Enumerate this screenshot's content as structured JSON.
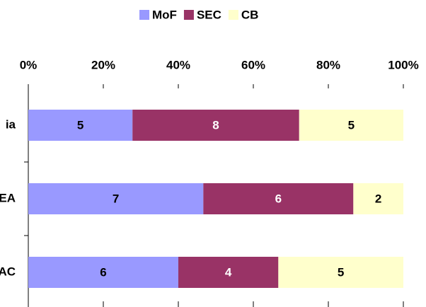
{
  "chart_data": {
    "type": "bar",
    "orientation": "horizontal",
    "stacked": "percent",
    "categories": [
      "ia",
      "EA",
      "AC"
    ],
    "series": [
      {
        "name": "MoF",
        "color": "#9999ff",
        "values": [
          5,
          7,
          6
        ]
      },
      {
        "name": "SEC",
        "color": "#993366",
        "values": [
          8,
          6,
          4
        ]
      },
      {
        "name": "CB",
        "color": "#ffffcc",
        "values": [
          5,
          2,
          5
        ]
      }
    ],
    "xlim": [
      0,
      100
    ],
    "xticks": [
      {
        "value": 0,
        "label": "0%"
      },
      {
        "value": 20,
        "label": "20%"
      },
      {
        "value": 40,
        "label": "40%"
      },
      {
        "value": 60,
        "label": "60%"
      },
      {
        "value": 80,
        "label": "80%"
      },
      {
        "value": 100,
        "label": "100%"
      }
    ],
    "legend": "top"
  }
}
